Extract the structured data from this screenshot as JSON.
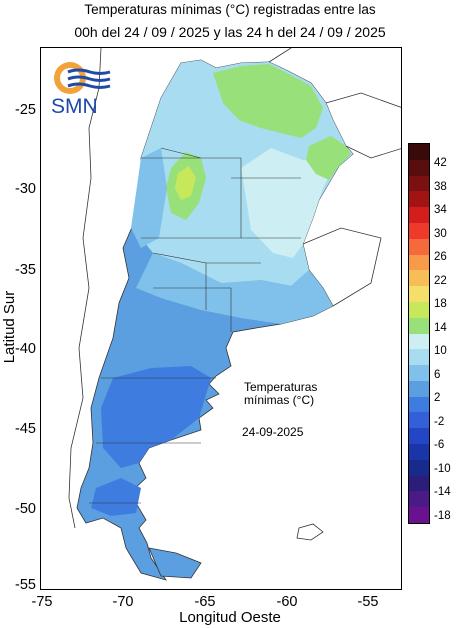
{
  "title": {
    "line1": "Temperaturas mínimas (°C) registradas entre las",
    "line2": "00h del 24 / 09 / 2025 y las 24 h del 24 / 09 / 2025"
  },
  "logo": {
    "text": "SMN",
    "icon": "smn-logo-icon"
  },
  "axes": {
    "ylabel": "Latitud Sur",
    "xlabel": "Longitud Oeste",
    "yticks": [
      "-25",
      "-30",
      "-35",
      "-40",
      "-45",
      "-50",
      "-55"
    ],
    "xticks": [
      "-75",
      "-70",
      "-65",
      "-60",
      "-55"
    ]
  },
  "annotation": {
    "line1": "Temperaturas",
    "line2": "mínimas (°C)",
    "date": "24-09-2025"
  },
  "legend": {
    "labels": [
      "42",
      "38",
      "34",
      "30",
      "26",
      "22",
      "18",
      "14",
      "10",
      "6",
      "2",
      "-2",
      "-6",
      "-10",
      "-14",
      "-18"
    ],
    "colors": [
      "#3a0a0a",
      "#5a0d0d",
      "#7a1010",
      "#a01414",
      "#d41e1e",
      "#ee3a2a",
      "#f46a3a",
      "#f79a4a",
      "#f7be57",
      "#f3df6a",
      "#c8e85c",
      "#98e07a",
      "#cdeef2",
      "#a8dcf0",
      "#7fc1ea",
      "#5b9fe0",
      "#3f7ce0",
      "#3360d8",
      "#2347c4",
      "#1a35a8",
      "#182a8c",
      "#2a1e7a",
      "#4a1a86",
      "#6a1090"
    ]
  }
}
